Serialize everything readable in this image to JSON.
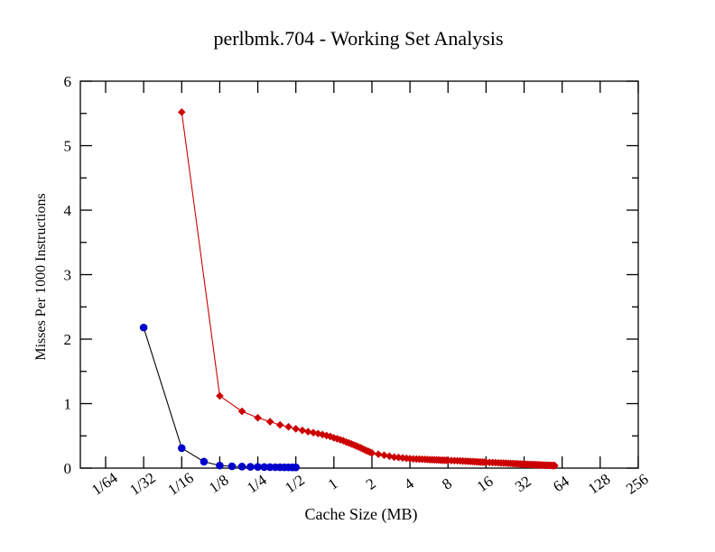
{
  "title": "perlbmk.704 - Working Set Analysis",
  "chart_data": {
    "type": "line",
    "title": "perlbmk.704 - Working Set Analysis",
    "xlabel": "Cache Size (MB)",
    "ylabel": "Misses Per 1000 Instructions",
    "x_scale": "log2",
    "grid": false,
    "legend": null,
    "ylim": [
      0,
      6
    ],
    "y_major_ticks": [
      0,
      1,
      2,
      3,
      4,
      5,
      6
    ],
    "y_minor_ticks": [
      0.5,
      1.5,
      2.5,
      3.5,
      4.5,
      5.5
    ],
    "x_tick_labels": [
      "1/64",
      "1/32",
      "1/16",
      "1/8",
      "1/4",
      "1/2",
      "1",
      "2",
      "4",
      "8",
      "16",
      "32",
      "64",
      "128",
      "256"
    ],
    "x_tick_values": [
      0.015625,
      0.03125,
      0.0625,
      0.125,
      0.25,
      0.5,
      1,
      2,
      4,
      8,
      16,
      32,
      64,
      128,
      256
    ],
    "colors": {
      "red_series": "#cc0000",
      "blue_series": "#0000cc",
      "blue_line": "#000000",
      "frame": "#000000",
      "background": "#ffffff"
    },
    "series": [
      {
        "name": "red-series",
        "marker": "diamond",
        "marker_color": "#cc0000",
        "line_color": "#cc0000",
        "points": [
          [
            0.0625,
            5.52
          ],
          [
            0.125,
            1.12
          ],
          [
            0.1875,
            0.88
          ],
          [
            0.25,
            0.78
          ],
          [
            0.3125,
            0.72
          ],
          [
            0.375,
            0.67
          ],
          [
            0.4375,
            0.64
          ],
          [
            0.5,
            0.61
          ],
          [
            0.5625,
            0.585
          ],
          [
            0.625,
            0.565
          ],
          [
            0.6875,
            0.55
          ],
          [
            0.75,
            0.535
          ],
          [
            0.8125,
            0.52
          ],
          [
            0.875,
            0.505
          ],
          [
            0.9375,
            0.49
          ],
          [
            1,
            0.47
          ],
          [
            1.0625,
            0.455
          ],
          [
            1.125,
            0.44
          ],
          [
            1.1875,
            0.425
          ],
          [
            1.25,
            0.405
          ],
          [
            1.3125,
            0.39
          ],
          [
            1.375,
            0.375
          ],
          [
            1.4375,
            0.36
          ],
          [
            1.5,
            0.345
          ],
          [
            1.5625,
            0.33
          ],
          [
            1.625,
            0.315
          ],
          [
            1.6875,
            0.3
          ],
          [
            1.75,
            0.285
          ],
          [
            1.8125,
            0.27
          ],
          [
            1.875,
            0.26
          ],
          [
            1.9375,
            0.245
          ],
          [
            2,
            0.235
          ],
          [
            2.25,
            0.215
          ],
          [
            2.5,
            0.2
          ],
          [
            2.75,
            0.185
          ],
          [
            3,
            0.17
          ],
          [
            3.25,
            0.165
          ],
          [
            3.5,
            0.158
          ],
          [
            3.75,
            0.152
          ],
          [
            4,
            0.146
          ],
          [
            4.25,
            0.143
          ],
          [
            4.5,
            0.141
          ],
          [
            4.75,
            0.139
          ],
          [
            5,
            0.137
          ],
          [
            5.25,
            0.135
          ],
          [
            5.5,
            0.133
          ],
          [
            5.75,
            0.131
          ],
          [
            6,
            0.13
          ],
          [
            6.25,
            0.128
          ],
          [
            6.5,
            0.127
          ],
          [
            6.75,
            0.126
          ],
          [
            7,
            0.124
          ],
          [
            7.25,
            0.123
          ],
          [
            7.5,
            0.122
          ],
          [
            7.75,
            0.121
          ],
          [
            8,
            0.12
          ],
          [
            8.5,
            0.118
          ],
          [
            9,
            0.116
          ],
          [
            9.5,
            0.114
          ],
          [
            10,
            0.112
          ],
          [
            10.5,
            0.11
          ],
          [
            11,
            0.108
          ],
          [
            11.5,
            0.106
          ],
          [
            12,
            0.104
          ],
          [
            12.5,
            0.102
          ],
          [
            13,
            0.1
          ],
          [
            13.5,
            0.098
          ],
          [
            14,
            0.096
          ],
          [
            14.5,
            0.094
          ],
          [
            15,
            0.093
          ],
          [
            15.5,
            0.091
          ],
          [
            16,
            0.09
          ],
          [
            17,
            0.088
          ],
          [
            18,
            0.086
          ],
          [
            19,
            0.084
          ],
          [
            20,
            0.082
          ],
          [
            21,
            0.08
          ],
          [
            22,
            0.078
          ],
          [
            23,
            0.077
          ],
          [
            24,
            0.075
          ],
          [
            25,
            0.073
          ],
          [
            26,
            0.071
          ],
          [
            27,
            0.069
          ],
          [
            28,
            0.067
          ],
          [
            29,
            0.066
          ],
          [
            30,
            0.064
          ],
          [
            31,
            0.062
          ],
          [
            32,
            0.06
          ],
          [
            33,
            0.059
          ],
          [
            34,
            0.058
          ],
          [
            35,
            0.057
          ],
          [
            36,
            0.056
          ],
          [
            37,
            0.055
          ],
          [
            38,
            0.054
          ],
          [
            39,
            0.053
          ],
          [
            40,
            0.052
          ],
          [
            41,
            0.051
          ],
          [
            42,
            0.05
          ],
          [
            43,
            0.049
          ],
          [
            44,
            0.048
          ],
          [
            45,
            0.047
          ],
          [
            46,
            0.046
          ],
          [
            47,
            0.045
          ],
          [
            48,
            0.044
          ],
          [
            49,
            0.043
          ],
          [
            50,
            0.043
          ],
          [
            51,
            0.042
          ],
          [
            52,
            0.042
          ],
          [
            53,
            0.041
          ],
          [
            54,
            0.04
          ],
          [
            55,
            0.04
          ],
          [
            56,
            0.039
          ]
        ]
      },
      {
        "name": "blue-series",
        "marker": "circle",
        "marker_color": "#0000cc",
        "line_color": "#000000",
        "points": [
          [
            0.03125,
            2.18
          ],
          [
            0.0625,
            0.31
          ],
          [
            0.09375,
            0.1
          ],
          [
            0.125,
            0.04
          ],
          [
            0.15625,
            0.028
          ],
          [
            0.1875,
            0.024
          ],
          [
            0.21875,
            0.02
          ],
          [
            0.25,
            0.018
          ],
          [
            0.28125,
            0.016
          ],
          [
            0.3125,
            0.015
          ],
          [
            0.34375,
            0.014
          ],
          [
            0.375,
            0.013
          ],
          [
            0.40625,
            0.012
          ],
          [
            0.4375,
            0.012
          ],
          [
            0.46875,
            0.011
          ],
          [
            0.5,
            0.011
          ]
        ]
      }
    ]
  }
}
